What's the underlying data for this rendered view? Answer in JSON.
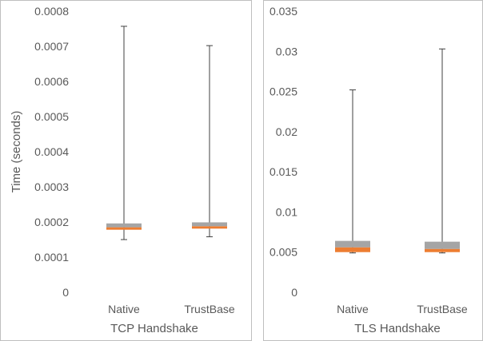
{
  "chart_data": [
    {
      "type": "box",
      "xlabel": "TCP Handshake",
      "ylabel": "Time (seconds)",
      "ylim": [
        0,
        0.0008
      ],
      "yticks": [
        "0",
        "0.0001",
        "0.0002",
        "0.0003",
        "0.0004",
        "0.0005",
        "0.0006",
        "0.0007",
        "0.0008"
      ],
      "categories": [
        "Native",
        "TrustBase"
      ],
      "boxes": [
        {
          "min": 0.00015,
          "q1": 0.000178,
          "median": 0.000185,
          "q3": 0.000196,
          "max": 0.000757
        },
        {
          "min": 0.000158,
          "q1": 0.000183,
          "median": 0.000188,
          "q3": 0.000199,
          "max": 0.000702
        }
      ],
      "grid": false
    },
    {
      "type": "box",
      "xlabel": "TLS Handshake",
      "ylabel": "",
      "ylim": [
        0,
        0.035
      ],
      "yticks": [
        "0",
        "0.005",
        "0.01",
        "0.015",
        "0.02",
        "0.025",
        "0.03",
        "0.035"
      ],
      "categories": [
        "Native",
        "TrustBase"
      ],
      "boxes": [
        {
          "min": 0.0049,
          "q1": 0.005,
          "median": 0.0056,
          "q3": 0.0064,
          "max": 0.0252
        },
        {
          "min": 0.0049,
          "q1": 0.005,
          "median": 0.0054,
          "q3": 0.0063,
          "max": 0.0303
        }
      ],
      "grid": false
    }
  ],
  "colors": {
    "lower_box": "#ed7d31",
    "upper_box": "#a5a5a5",
    "whisker": "#404040",
    "frame": "#bfbfbf",
    "text": "#595959"
  }
}
